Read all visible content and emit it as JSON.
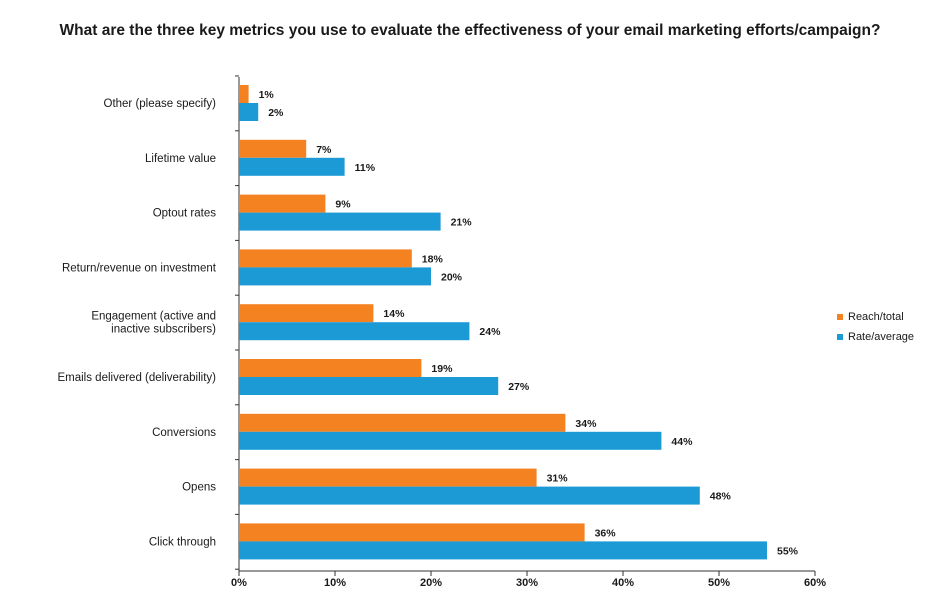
{
  "chart_data": {
    "type": "bar",
    "orientation": "horizontal",
    "title": "What are the three key metrics you use to evaluate the effectiveness of your email marketing efforts/campaign?",
    "categories": [
      "Other (please specify)",
      "Lifetime value",
      "Optout rates",
      "Return/revenue on investment",
      "Engagement (active and\ninactive subscribers)",
      "Emails delivered (deliverability)",
      "Conversions",
      "Opens",
      "Click through"
    ],
    "series": [
      {
        "name": "Reach/total",
        "color": "#f58220",
        "values": [
          1,
          7,
          9,
          18,
          14,
          19,
          34,
          31,
          36
        ],
        "labels": [
          "1%",
          "7%",
          "9%",
          "18%",
          "14%",
          "19%",
          "34%",
          "31%",
          "36%"
        ]
      },
      {
        "name": "Rate/average",
        "color": "#1b9ad6",
        "values": [
          2,
          11,
          21,
          20,
          24,
          27,
          44,
          48,
          55
        ],
        "labels": [
          "2%",
          "11%",
          "21%",
          "20%",
          "24%",
          "27%",
          "44%",
          "48%",
          "55%"
        ]
      }
    ],
    "xlim": [
      0,
      60
    ],
    "xticks": [
      0,
      10,
      20,
      30,
      40,
      50,
      60
    ],
    "xtick_labels": [
      "0%",
      "10%",
      "20%",
      "30%",
      "40%",
      "50%",
      "60%"
    ],
    "grid": false,
    "legend_position": "right"
  }
}
